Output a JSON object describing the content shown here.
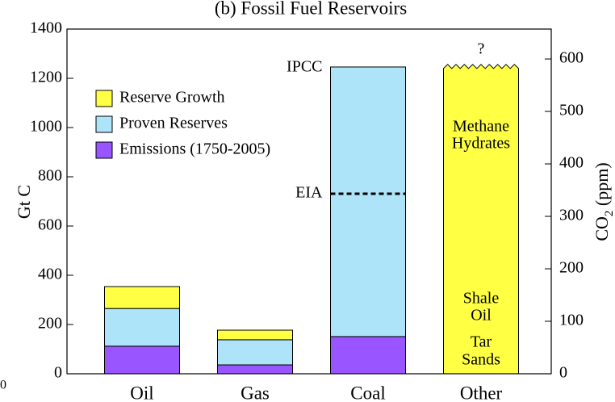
{
  "chart_data": {
    "type": "stacked-bar",
    "title": "(b)  Fossil Fuel Reservoirs",
    "ylabel": "Gt C",
    "y2label": [
      "CO",
      "2",
      " (ppm)"
    ],
    "categories": [
      "Oil",
      "Gas",
      "Coal",
      "Other"
    ],
    "series": [
      {
        "name": "Reserve Growth",
        "color": "#ffff44",
        "values": [
          89,
          39,
          0,
          1240
        ]
      },
      {
        "name": "Proven Reserves",
        "color": "#aee4fa",
        "values": [
          153,
          102,
          1095,
          0
        ]
      },
      {
        "name": "Emissions (1750-2005)",
        "color": "#9955ff",
        "values": [
          112,
          36,
          151,
          0
        ]
      }
    ],
    "open_top": [
      false,
      false,
      false,
      true
    ],
    "ylim": [
      0,
      1400
    ],
    "yticks": [
      0,
      200,
      400,
      600,
      800,
      1000,
      1200,
      1400
    ],
    "y2lim": [
      0,
      657
    ],
    "y2ticks": [
      0,
      100,
      200,
      300,
      400,
      500,
      600
    ],
    "ipcc_label": "IPCC",
    "eia": {
      "label": "EIA",
      "value": 731
    },
    "question_mark": "?",
    "other_labels": [
      [
        "Methane",
        "Hydrates"
      ],
      [
        "Shale",
        "Oil"
      ],
      [
        "Tar",
        "Sands"
      ]
    ],
    "corner_text": "0"
  }
}
